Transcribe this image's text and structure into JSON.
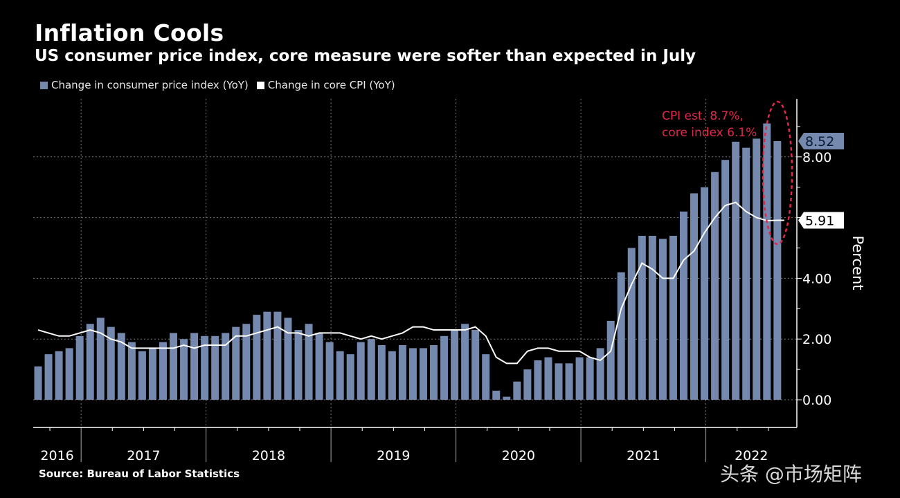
{
  "chart_data": {
    "type": "bar+line",
    "title": "Inflation Cools",
    "subtitle": "US consumer price index, core measure were softer than expected in July",
    "ylabel": "Percent",
    "ylim": [
      -0.9,
      9.9
    ],
    "y_ticks": [
      "0.00",
      "2.00",
      "4.00",
      "8.00"
    ],
    "grid": true,
    "legend_position": "top-left",
    "x_year_labels": [
      "2016",
      "2017",
      "2018",
      "2019",
      "2020",
      "2021",
      "2022"
    ],
    "x": [
      "2016-08",
      "2016-09",
      "2016-10",
      "2016-11",
      "2016-12",
      "2017-01",
      "2017-02",
      "2017-03",
      "2017-04",
      "2017-05",
      "2017-06",
      "2017-07",
      "2017-08",
      "2017-09",
      "2017-10",
      "2017-11",
      "2017-12",
      "2018-01",
      "2018-02",
      "2018-03",
      "2018-04",
      "2018-05",
      "2018-06",
      "2018-07",
      "2018-08",
      "2018-09",
      "2018-10",
      "2018-11",
      "2018-12",
      "2019-01",
      "2019-02",
      "2019-03",
      "2019-04",
      "2019-05",
      "2019-06",
      "2019-07",
      "2019-08",
      "2019-09",
      "2019-10",
      "2019-11",
      "2019-12",
      "2020-01",
      "2020-02",
      "2020-03",
      "2020-04",
      "2020-05",
      "2020-06",
      "2020-07",
      "2020-08",
      "2020-09",
      "2020-10",
      "2020-11",
      "2020-12",
      "2021-01",
      "2021-02",
      "2021-03",
      "2021-04",
      "2021-05",
      "2021-06",
      "2021-07",
      "2021-08",
      "2021-09",
      "2021-10",
      "2021-11",
      "2021-12",
      "2022-01",
      "2022-02",
      "2022-03",
      "2022-04",
      "2022-05",
      "2022-06",
      "2022-07"
    ],
    "series": [
      {
        "name": "Change in consumer price index (YoY)",
        "type": "bar",
        "color": "#7489ad",
        "values": [
          1.1,
          1.5,
          1.6,
          1.7,
          2.1,
          2.5,
          2.7,
          2.4,
          2.2,
          1.9,
          1.6,
          1.7,
          1.9,
          2.2,
          2.0,
          2.2,
          2.1,
          2.1,
          2.2,
          2.4,
          2.5,
          2.8,
          2.9,
          2.9,
          2.7,
          2.3,
          2.5,
          2.2,
          1.9,
          1.6,
          1.5,
          1.9,
          2.0,
          1.8,
          1.6,
          1.8,
          1.7,
          1.7,
          1.8,
          2.1,
          2.3,
          2.5,
          2.3,
          1.5,
          0.3,
          0.1,
          0.6,
          1.0,
          1.3,
          1.4,
          1.2,
          1.2,
          1.4,
          1.4,
          1.7,
          2.6,
          4.2,
          5.0,
          5.4,
          5.4,
          5.3,
          5.4,
          6.2,
          6.8,
          7.0,
          7.5,
          7.9,
          8.5,
          8.3,
          8.6,
          9.1,
          8.52
        ],
        "last_label": "8.52"
      },
      {
        "name": "Change in core CPI (YoY)",
        "type": "line",
        "color": "#ffffff",
        "values": [
          2.3,
          2.2,
          2.1,
          2.1,
          2.2,
          2.3,
          2.2,
          2.0,
          1.9,
          1.7,
          1.7,
          1.7,
          1.7,
          1.7,
          1.8,
          1.7,
          1.8,
          1.8,
          1.8,
          2.1,
          2.1,
          2.2,
          2.3,
          2.4,
          2.2,
          2.2,
          2.1,
          2.2,
          2.2,
          2.2,
          2.1,
          2.0,
          2.1,
          2.0,
          2.1,
          2.2,
          2.4,
          2.4,
          2.3,
          2.3,
          2.3,
          2.3,
          2.4,
          2.1,
          1.4,
          1.2,
          1.2,
          1.6,
          1.7,
          1.7,
          1.6,
          1.6,
          1.6,
          1.4,
          1.3,
          1.6,
          3.0,
          3.8,
          4.5,
          4.3,
          4.0,
          4.0,
          4.6,
          4.9,
          5.5,
          6.0,
          6.4,
          6.5,
          6.2,
          6.0,
          5.9,
          5.91
        ],
        "last_label": "5.91"
      }
    ],
    "annotation": {
      "text_line1": "CPI est. 8.7%,",
      "text_line2": "core index 6.1%",
      "color": "#e0284a"
    },
    "source": "Source: Bureau of Labor Statistics"
  },
  "watermark": "头条 @市场矩阵"
}
